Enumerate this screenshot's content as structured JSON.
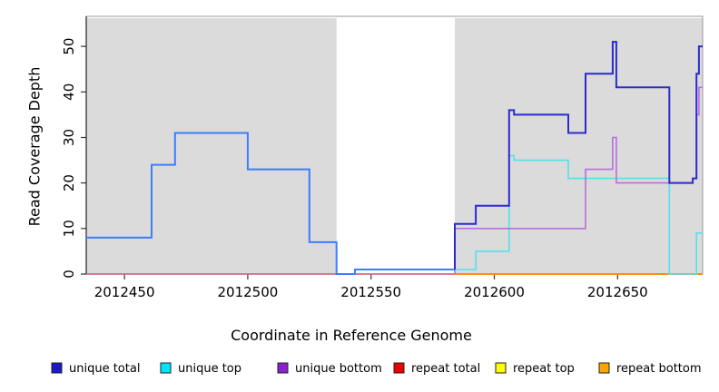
{
  "chart_data": {
    "type": "line",
    "subtype": "step-coverage-plot",
    "title": "",
    "xlabel": "Coordinate in Reference Genome",
    "ylabel": "Read Coverage Depth",
    "xlim": [
      2012434.5,
      2012684.5
    ],
    "ylim": [
      0,
      56.6
    ],
    "x_ticks": [
      2012450,
      2012500,
      2012550,
      2012600,
      2012650
    ],
    "y_ticks": [
      0,
      10,
      20,
      30,
      40,
      50
    ],
    "grid": false,
    "legend_position": "bottom",
    "plot_background": "#ffffff",
    "shaded_bands": [
      {
        "x0": 2012434.5,
        "x1": 2012536,
        "color": "#DBDBDB"
      },
      {
        "x0": 2012584,
        "x1": 2012684.5,
        "color": "#DBDBDB"
      }
    ],
    "series": [
      {
        "name": "repeat total",
        "color": "#E2638B",
        "width": 1.6,
        "points": [
          [
            2012434.5,
            0
          ],
          [
            2012584,
            0
          ]
        ]
      },
      {
        "name": "repeat bottom",
        "color": "#FF8C1A",
        "width": 2,
        "points": [
          [
            2012584,
            0
          ],
          [
            2012684.5,
            0
          ]
        ]
      },
      {
        "name": "unique total (left segment)",
        "color": "#3C7DFE",
        "width": 2,
        "points": [
          [
            2012434.5,
            8
          ],
          [
            2012461,
            8
          ],
          [
            2012461,
            24
          ],
          [
            2012470.5,
            24
          ],
          [
            2012470.5,
            31
          ],
          [
            2012500,
            31
          ],
          [
            2012500,
            23
          ],
          [
            2012525,
            23
          ],
          [
            2012525,
            7
          ],
          [
            2012536,
            7
          ],
          [
            2012536,
            0
          ],
          [
            2012543.5,
            0
          ],
          [
            2012543.5,
            1
          ],
          [
            2012584,
            1
          ]
        ]
      },
      {
        "name": "unique top",
        "color": "#4FE3EC",
        "width": 1.6,
        "points": [
          [
            2012584,
            1
          ],
          [
            2012592.5,
            1
          ],
          [
            2012592.5,
            5
          ],
          [
            2012606,
            5
          ],
          [
            2012606,
            26
          ],
          [
            2012608,
            26
          ],
          [
            2012608,
            25
          ],
          [
            2012630,
            25
          ],
          [
            2012630,
            21
          ],
          [
            2012671,
            21
          ],
          [
            2012671,
            0
          ],
          [
            2012682,
            0
          ],
          [
            2012682,
            9
          ],
          [
            2012684.5,
            9
          ]
        ]
      },
      {
        "name": "unique bottom",
        "color": "#B76FDC",
        "width": 1.6,
        "points": [
          [
            2012584,
            0
          ],
          [
            2012584,
            10
          ],
          [
            2012637,
            10
          ],
          [
            2012637,
            23
          ],
          [
            2012648,
            23
          ],
          [
            2012648,
            30
          ],
          [
            2012649.5,
            30
          ],
          [
            2012649.5,
            20
          ],
          [
            2012680.5,
            20
          ],
          [
            2012680.5,
            21
          ],
          [
            2012682,
            21
          ],
          [
            2012682,
            35
          ],
          [
            2012683,
            35
          ],
          [
            2012683,
            41
          ],
          [
            2012684.5,
            41
          ]
        ]
      },
      {
        "name": "unique total",
        "color": "#2B2BD0",
        "width": 2,
        "points": [
          [
            2012584,
            1
          ],
          [
            2012584,
            11
          ],
          [
            2012592.5,
            11
          ],
          [
            2012592.5,
            15
          ],
          [
            2012606,
            15
          ],
          [
            2012606,
            36
          ],
          [
            2012608,
            36
          ],
          [
            2012608,
            35
          ],
          [
            2012630,
            35
          ],
          [
            2012630,
            31
          ],
          [
            2012637,
            31
          ],
          [
            2012637,
            44
          ],
          [
            2012648,
            44
          ],
          [
            2012648,
            51
          ],
          [
            2012649.5,
            51
          ],
          [
            2012649.5,
            41
          ],
          [
            2012671,
            41
          ],
          [
            2012671,
            20
          ],
          [
            2012680.5,
            20
          ],
          [
            2012680.5,
            21
          ],
          [
            2012682,
            21
          ],
          [
            2012682,
            44
          ],
          [
            2012683,
            44
          ],
          [
            2012683,
            50
          ],
          [
            2012684.5,
            50
          ]
        ]
      }
    ],
    "legend": [
      {
        "label": "unique total",
        "color": "#1A1ACC"
      },
      {
        "label": "unique top",
        "color": "#00E6FF"
      },
      {
        "label": "unique bottom",
        "color": "#8B20D0"
      },
      {
        "label": "repeat total",
        "color": "#EE0000"
      },
      {
        "label": "repeat top",
        "color": "#FFFF00"
      },
      {
        "label": "repeat bottom",
        "color": "#FFA500"
      }
    ]
  }
}
